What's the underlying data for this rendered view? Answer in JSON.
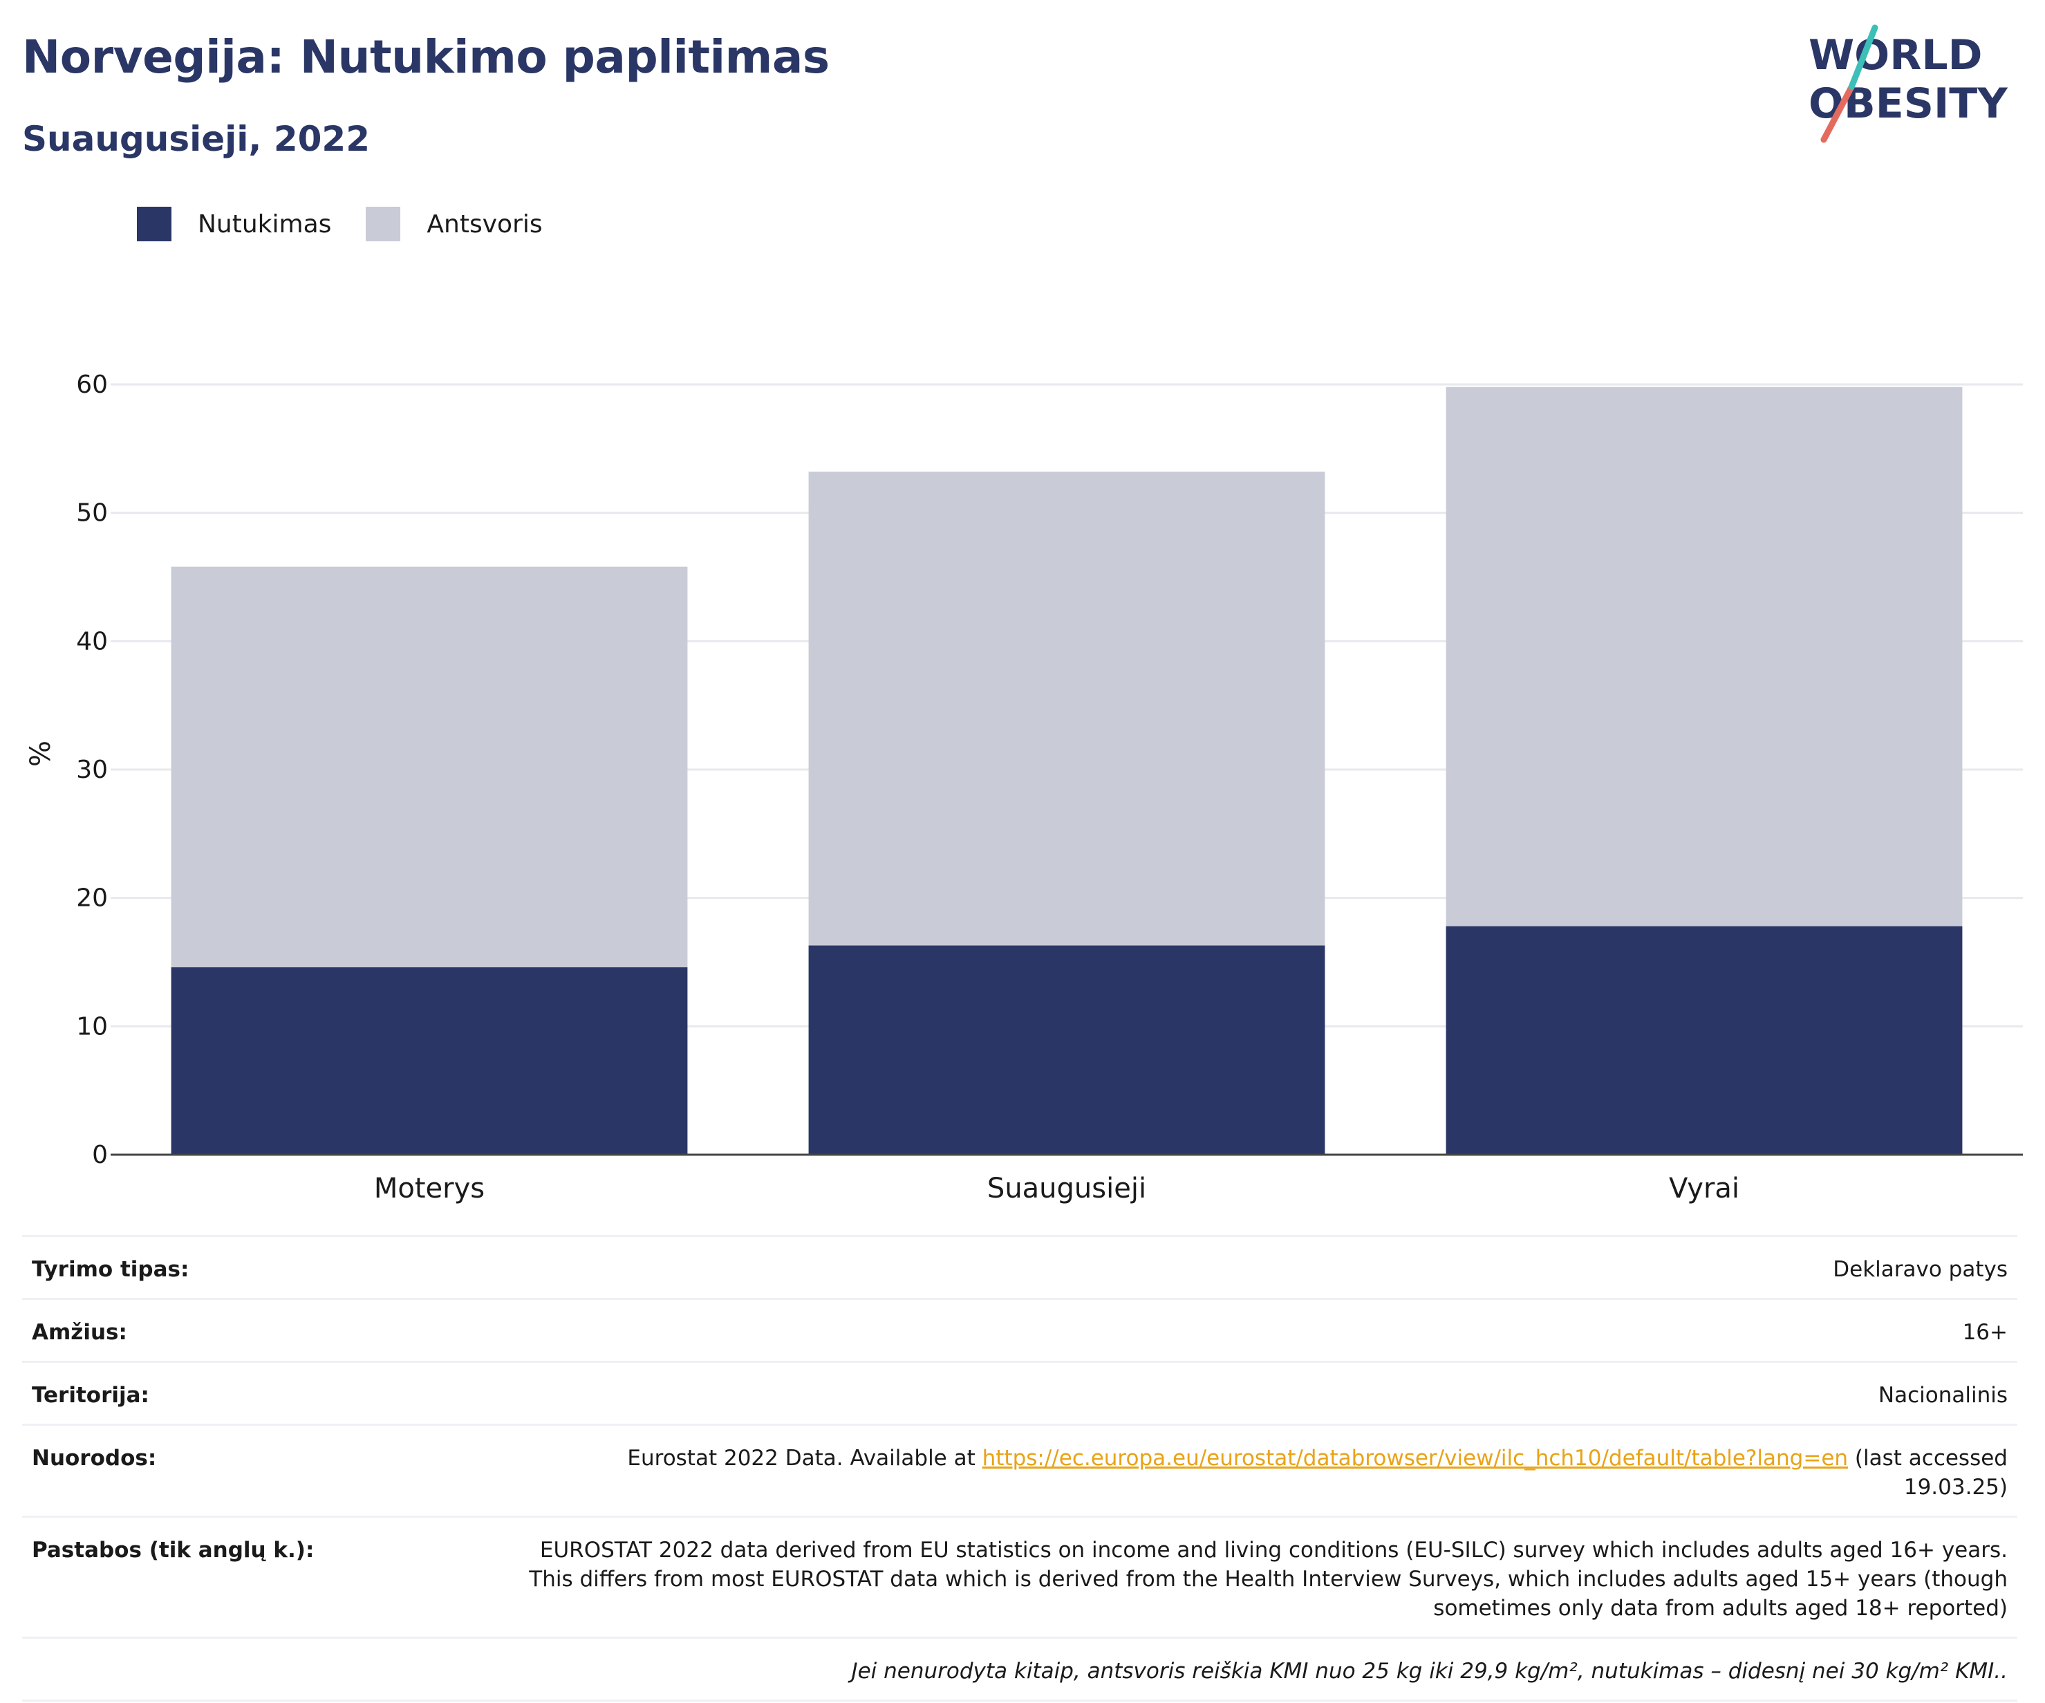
{
  "header": {
    "title": "Norvegija: Nutukimo paplitimas",
    "subtitle": "Suaugusieji, 2022"
  },
  "logo": {
    "line1": "WORLD",
    "line2": "OBESITY"
  },
  "colors": {
    "obesity": "#2a3665",
    "overweight": "#c9cbd7",
    "accent_red": "#e56a5e",
    "accent_teal": "#3bbfb8",
    "link": "#e8a317"
  },
  "chart_data": {
    "type": "bar",
    "stacked": true,
    "categories": [
      "Moterys",
      "Suaugusieji",
      "Vyrai"
    ],
    "series": [
      {
        "name": "Nutukimas",
        "values": [
          14.6,
          16.3,
          17.8
        ]
      },
      {
        "name": "Antsvoris",
        "values": [
          31.2,
          36.9,
          42.0
        ]
      }
    ],
    "ylabel": "%",
    "ylim": [
      0,
      60
    ],
    "yticks": [
      "0",
      "10",
      "20",
      "30",
      "40",
      "50",
      "60"
    ],
    "grid": true,
    "legend_position": "top-left"
  },
  "info": {
    "rows": [
      {
        "label": "Tyrimo tipas:",
        "value": "Deklaravo patys"
      },
      {
        "label": "Amžius:",
        "value": "16+"
      },
      {
        "label": "Teritorija:",
        "value": "Nacionalinis"
      }
    ],
    "references": {
      "label": "Nuorodos:",
      "prefix": "Eurostat 2022 Data. Available at ",
      "link": "https://ec.europa.eu/eurostat/databrowser/view/ilc_hch10/default/table?lang=en",
      "suffix": " (last accessed 19.03.25)"
    },
    "notes": {
      "label": "Pastabos (tik anglų k.):",
      "value": "EUROSTAT 2022 data derived from EU statistics on income and living conditions (EU-SILC) survey which includes adults aged 16+ years. This differs from most EUROSTAT data which is derived from the Health Interview Surveys, which includes adults aged 15+ years (though sometimes only data from adults aged 18+ reported)"
    },
    "footnote": "Jei nenurodyta kitaip, antsvoris reiškia KMI nuo 25 kg iki 29,9 kg/m², nutukimas – didesnį nei 30 kg/m² KMI.."
  }
}
